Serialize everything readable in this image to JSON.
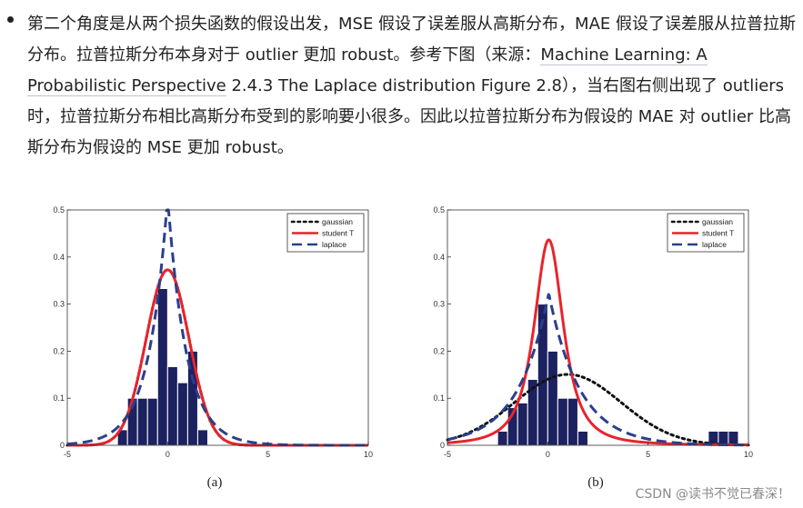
{
  "text": {
    "part1": "第二个角度是从两个损失函数的假设出发，MSE 假设了误差服从高斯分布，MAE 假设了误差服从拉普拉斯分布。拉普拉斯分布本身对于 outlier 更加 robust。参考下图（来源：",
    "link": "Machine Learning: A Probabilistic Perspective",
    "part2": " 2.4.3 The Laplace distribution Figure 2.8），当右图右侧出现了 outliers 时，拉普拉斯分布相比高斯分布受到的影响要小很多。因此以拉普拉斯分布为假设的 MAE 对 outlier 比高斯分布为假设的 MSE 更加 robust。"
  },
  "watermark": "CSDN @读书不觉已春深！",
  "colors": {
    "gaussian": "#111111",
    "student": "#e8242b",
    "laplace": "#2b3f8c",
    "bar": "#1c2160"
  },
  "chart_data": [
    {
      "type": "bar",
      "title": "",
      "caption": "(a)",
      "xlim": [
        -5,
        10
      ],
      "ylim": [
        0,
        0.5
      ],
      "xticks": [
        -5,
        0,
        5,
        10
      ],
      "yticks": [
        0,
        0.1,
        0.2,
        0.3,
        0.4,
        0.5
      ],
      "bar_edges": [
        -2.5,
        -2,
        -1.5,
        -1,
        -0.5,
        0,
        0.5,
        1,
        1.5,
        2
      ],
      "bar_values": [
        0.033,
        0.1,
        0.1,
        0.1,
        0.333,
        0.167,
        0.133,
        0.2,
        0.033
      ],
      "legend": [
        "gaussian",
        "student T",
        "laplace"
      ],
      "series": [
        {
          "name": "gaussian",
          "dist": "normal",
          "mu": 0,
          "sigma": 1.07
        },
        {
          "name": "student T",
          "dist": "student_t",
          "mu": 0,
          "sigma": 1.07,
          "nu": 500
        },
        {
          "name": "laplace",
          "dist": "laplace",
          "mu": 0,
          "b": 0.95
        }
      ]
    },
    {
      "type": "bar",
      "title": "",
      "caption": "(b)",
      "xlim": [
        -5,
        10
      ],
      "ylim": [
        0,
        0.5
      ],
      "xticks": [
        -5,
        0,
        5,
        10
      ],
      "yticks": [
        0,
        0.1,
        0.2,
        0.3,
        0.4,
        0.5
      ],
      "bar_edges": [
        -2.5,
        -2,
        -1.5,
        -1,
        -0.5,
        0,
        0.5,
        1,
        1.5,
        2,
        8,
        8.5,
        9,
        9.5
      ],
      "bar_values": [
        0.03,
        0.08,
        0.09,
        0.14,
        0.3,
        0.2,
        0.1,
        0.1,
        0.03,
        null,
        0.03,
        0.03,
        0.03
      ],
      "legend": [
        "gaussian",
        "student T",
        "laplace"
      ],
      "series": [
        {
          "name": "gaussian",
          "dist": "normal",
          "mu": 1.0,
          "sigma": 2.65
        },
        {
          "name": "student T",
          "dist": "student_t",
          "mu": 0.05,
          "sigma": 0.8,
          "nu": 1.8
        },
        {
          "name": "laplace",
          "dist": "laplace",
          "mu": 0.05,
          "b": 1.55
        }
      ]
    }
  ]
}
